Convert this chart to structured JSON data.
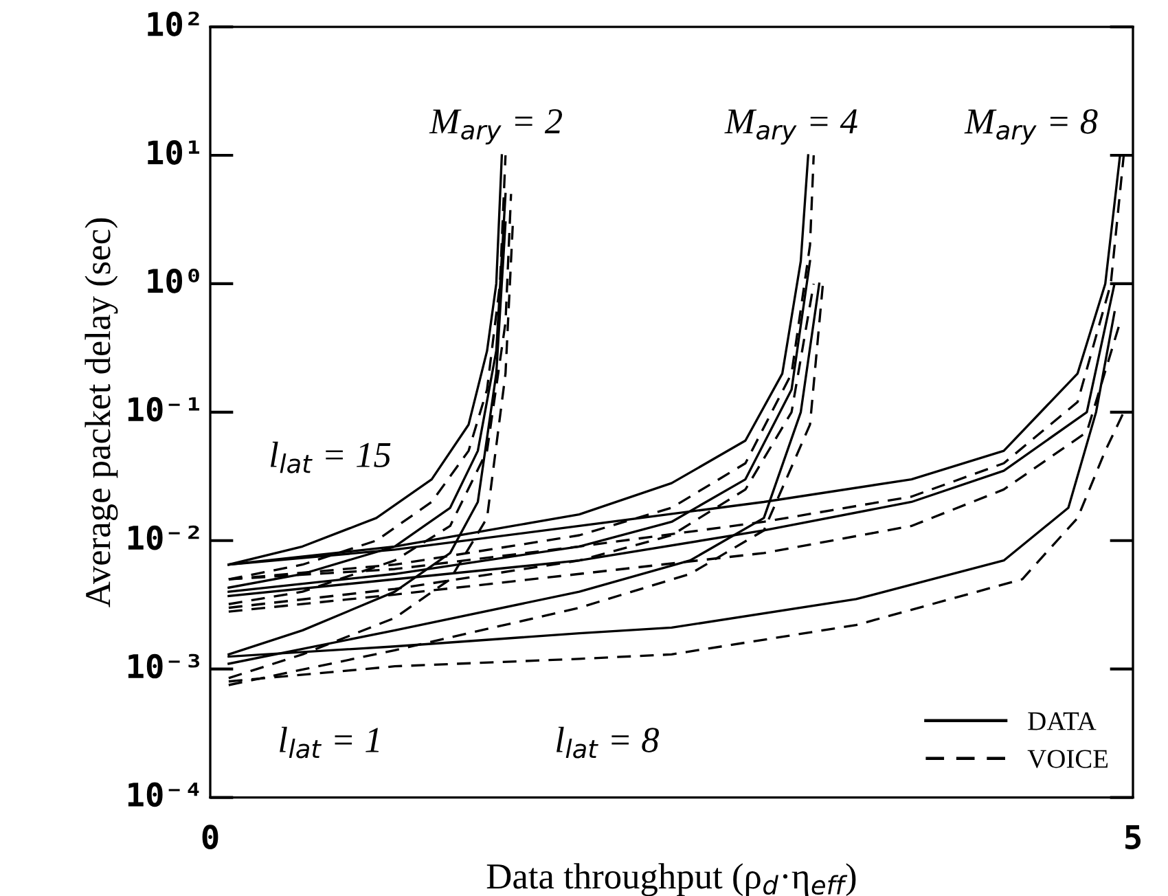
{
  "chart_data": {
    "type": "line",
    "xlabel": "Data throughput (ρ$_{d}$·η$_{eff}$)",
    "ylabel": "Average packet delay (sec)",
    "log": "y",
    "xlim": [
      0,
      5
    ],
    "xticks": [
      0,
      5
    ],
    "ylim": [
      0.0001,
      100
    ],
    "yticks": [
      {
        "value": 0.0001,
        "label": "10⁻⁴"
      },
      {
        "value": 0.001,
        "label": "10⁻³"
      },
      {
        "value": 0.01,
        "label": "10⁻²"
      },
      {
        "value": 0.1,
        "label": "10⁻¹"
      },
      {
        "value": 1,
        "label": "10⁰"
      },
      {
        "value": 10,
        "label": "10¹"
      },
      {
        "value": 100,
        "label": "10²"
      }
    ],
    "grid": false,
    "legend": "bottom right",
    "marker": "none",
    "series": [
      {
        "name": "DATA",
        "color": "#000000",
        "line_style": "solid",
        "x": [
          0.1,
          0.5,
          0.9,
          1.2,
          1.4,
          1.5,
          1.55,
          1.58
        ],
        "values": [
          0.0065,
          0.009,
          0.015,
          0.03,
          0.08,
          0.3,
          1,
          10
        ]
      },
      {
        "name": "VOICE",
        "color": "#000000",
        "line_style": "dashed",
        "x": [
          0.1,
          0.5,
          0.9,
          1.2,
          1.4,
          1.5,
          1.57,
          1.6
        ],
        "values": [
          0.005,
          0.0065,
          0.01,
          0.02,
          0.05,
          0.15,
          1,
          10
        ]
      },
      {
        "color": "#000000",
        "line_style": "solid",
        "x": [
          0.1,
          0.5,
          1.0,
          1.3,
          1.45,
          1.55,
          1.6
        ],
        "values": [
          0.0043,
          0.0055,
          0.009,
          0.018,
          0.05,
          0.3,
          5
        ]
      },
      {
        "color": "#000000",
        "line_style": "dashed",
        "x": [
          0.1,
          0.5,
          1.0,
          1.3,
          1.5,
          1.6,
          1.63
        ],
        "values": [
          0.0032,
          0.004,
          0.007,
          0.013,
          0.05,
          0.5,
          5
        ]
      },
      {
        "color": "#000000",
        "line_style": "solid",
        "x": [
          0.1,
          0.5,
          1.0,
          1.3,
          1.45,
          1.55,
          1.6
        ],
        "values": [
          0.0013,
          0.002,
          0.004,
          0.008,
          0.02,
          0.2,
          3
        ]
      },
      {
        "color": "#000000",
        "line_style": "dashed",
        "x": [
          0.1,
          0.5,
          1.0,
          1.3,
          1.5,
          1.6,
          1.64
        ],
        "values": [
          0.00085,
          0.0013,
          0.0025,
          0.005,
          0.015,
          0.2,
          3
        ]
      },
      {
        "color": "#000000",
        "line_style": "solid",
        "x": [
          0.1,
          1.0,
          2.0,
          2.5,
          2.9,
          3.1,
          3.2,
          3.24
        ],
        "values": [
          0.0065,
          0.009,
          0.016,
          0.028,
          0.06,
          0.2,
          1.5,
          10
        ]
      },
      {
        "color": "#000000",
        "line_style": "dashed",
        "x": [
          0.1,
          1.0,
          2.0,
          2.5,
          2.9,
          3.15,
          3.25,
          3.27
        ],
        "values": [
          0.005,
          0.0065,
          0.011,
          0.018,
          0.04,
          0.2,
          2,
          10
        ]
      },
      {
        "color": "#000000",
        "line_style": "solid",
        "x": [
          0.1,
          1.0,
          2.0,
          2.5,
          2.9,
          3.15,
          3.25
        ],
        "values": [
          0.004,
          0.0055,
          0.009,
          0.014,
          0.03,
          0.15,
          1.5
        ]
      },
      {
        "color": "#000000",
        "line_style": "dashed",
        "x": [
          0.1,
          1.0,
          2.0,
          2.5,
          2.9,
          3.15,
          3.27
        ],
        "values": [
          0.003,
          0.0042,
          0.007,
          0.011,
          0.025,
          0.1,
          1
        ]
      },
      {
        "color": "#000000",
        "line_style": "solid",
        "x": [
          0.1,
          1.0,
          2.0,
          2.6,
          3.0,
          3.2,
          3.3
        ],
        "values": [
          0.0011,
          0.002,
          0.004,
          0.007,
          0.015,
          0.1,
          1
        ]
      },
      {
        "color": "#000000",
        "line_style": "dashed",
        "x": [
          0.1,
          1.0,
          2.0,
          2.6,
          3.0,
          3.25,
          3.32
        ],
        "values": [
          0.00075,
          0.0014,
          0.003,
          0.0055,
          0.012,
          0.08,
          1
        ]
      },
      {
        "color": "#000000",
        "line_style": "solid",
        "x": [
          0.1,
          1.0,
          2.0,
          3.0,
          3.8,
          4.3,
          4.7,
          4.85,
          4.93
        ],
        "values": [
          0.0065,
          0.0085,
          0.013,
          0.02,
          0.03,
          0.05,
          0.2,
          1,
          10
        ]
      },
      {
        "color": "#000000",
        "line_style": "dashed",
        "x": [
          0.1,
          1.0,
          2.0,
          3.0,
          3.8,
          4.3,
          4.7,
          4.88,
          4.95
        ],
        "values": [
          0.005,
          0.006,
          0.009,
          0.014,
          0.022,
          0.04,
          0.12,
          1,
          10
        ]
      },
      {
        "color": "#000000",
        "line_style": "solid",
        "x": [
          0.1,
          1.0,
          2.0,
          3.0,
          3.8,
          4.3,
          4.75,
          4.9
        ],
        "values": [
          0.0037,
          0.005,
          0.007,
          0.012,
          0.02,
          0.035,
          0.1,
          1
        ]
      },
      {
        "color": "#000000",
        "line_style": "dashed",
        "x": [
          0.1,
          1.0,
          2.0,
          3.0,
          3.8,
          4.3,
          4.75,
          4.93
        ],
        "values": [
          0.0028,
          0.0038,
          0.0055,
          0.008,
          0.013,
          0.025,
          0.07,
          0.5
        ]
      },
      {
        "color": "#000000",
        "line_style": "solid",
        "x": [
          0.1,
          1.0,
          2.0,
          2.5,
          3.5,
          4.3,
          4.65,
          4.8,
          4.9
        ],
        "values": [
          0.00125,
          0.0015,
          0.0019,
          0.0021,
          0.0035,
          0.007,
          0.018,
          0.1,
          0.6
        ]
      },
      {
        "color": "#000000",
        "line_style": "dashed",
        "x": [
          0.1,
          1.0,
          2.0,
          2.5,
          3.5,
          4.4,
          4.7,
          4.85,
          4.95
        ],
        "values": [
          0.0008,
          0.00105,
          0.0012,
          0.0013,
          0.0022,
          0.005,
          0.015,
          0.05,
          0.1
        ]
      }
    ],
    "annotations": [
      "M$_{ary}$ = 2",
      "M$_{ary}$ = 4",
      "M$_{ary}$ = 8",
      "l$_{lat}$ = 15",
      "l$_{lat}$ = 1",
      "l$_{lat}$ = 8"
    ]
  }
}
